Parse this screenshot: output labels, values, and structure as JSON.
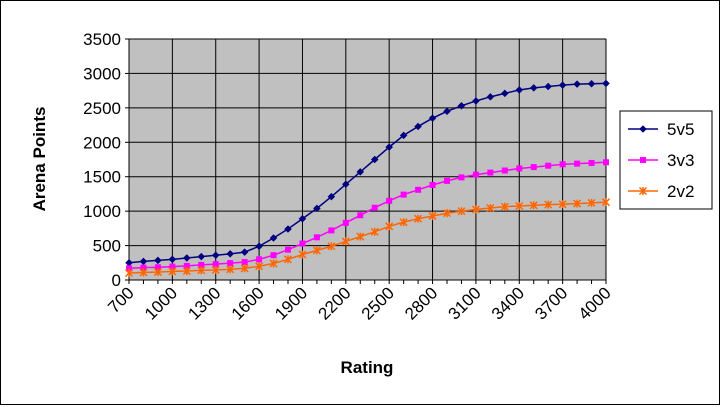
{
  "chart_data": {
    "type": "line",
    "title": "",
    "xlabel": "Rating",
    "ylabel": "Arena Points",
    "xlim": [
      700,
      4000
    ],
    "ylim": [
      0,
      3500
    ],
    "x_ticks": [
      700,
      1000,
      1300,
      1600,
      1900,
      2200,
      2500,
      2800,
      3100,
      3400,
      3700,
      4000
    ],
    "y_ticks": [
      0,
      500,
      1000,
      1500,
      2000,
      2500,
      3000,
      3500
    ],
    "x_tick_labels": [
      "700",
      "1000",
      "1300",
      "1600",
      "1900",
      "2200",
      "2500",
      "2800",
      "3100",
      "3400",
      "3700",
      "4000"
    ],
    "y_tick_labels": [
      "0",
      "500",
      "1000",
      "1500",
      "2000",
      "2500",
      "3000",
      "3500"
    ],
    "grid": true,
    "plot_background": "#c0c0c0",
    "legend_position": "right",
    "x": [
      700,
      800,
      900,
      1000,
      1100,
      1200,
      1300,
      1400,
      1500,
      1600,
      1700,
      1800,
      1900,
      2000,
      2100,
      2200,
      2300,
      2400,
      2500,
      2600,
      2700,
      2800,
      2900,
      3000,
      3100,
      3200,
      3300,
      3400,
      3500,
      3600,
      3700,
      3800,
      3900,
      4000
    ],
    "series": [
      {
        "name": "5v5",
        "color": "#000080",
        "marker": "diamond",
        "values": [
          250,
          270,
          285,
          300,
          320,
          340,
          360,
          380,
          405,
          490,
          610,
          740,
          890,
          1040,
          1210,
          1390,
          1570,
          1750,
          1930,
          2100,
          2230,
          2350,
          2450,
          2530,
          2600,
          2660,
          2710,
          2760,
          2790,
          2810,
          2830,
          2845,
          2850,
          2855
        ]
      },
      {
        "name": "3v3",
        "color": "#ff00ff",
        "marker": "square",
        "values": [
          170,
          180,
          185,
          195,
          205,
          220,
          230,
          245,
          260,
          300,
          360,
          440,
          530,
          620,
          720,
          830,
          940,
          1050,
          1150,
          1240,
          1310,
          1380,
          1440,
          1490,
          1530,
          1560,
          1590,
          1620,
          1640,
          1660,
          1680,
          1690,
          1700,
          1710
        ]
      },
      {
        "name": "2v2",
        "color": "#ff6600",
        "marker": "asterisk",
        "values": [
          100,
          110,
          115,
          125,
          130,
          140,
          145,
          155,
          170,
          200,
          240,
          300,
          370,
          430,
          490,
          560,
          630,
          700,
          780,
          840,
          890,
          930,
          970,
          1000,
          1025,
          1045,
          1065,
          1075,
          1085,
          1095,
          1100,
          1110,
          1120,
          1130
        ]
      }
    ]
  }
}
